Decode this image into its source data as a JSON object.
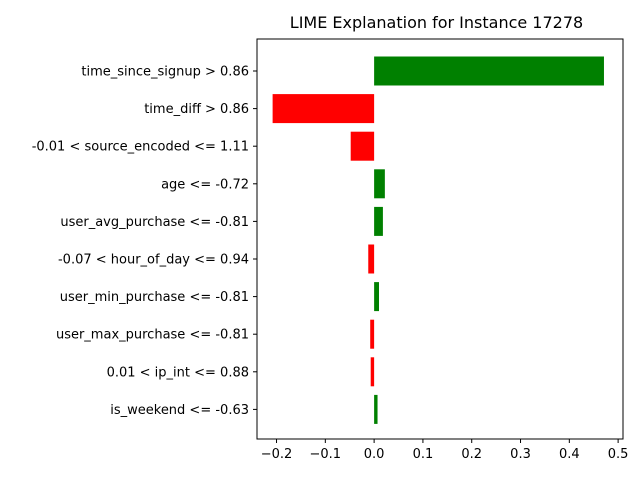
{
  "chart_data": {
    "type": "bar",
    "orientation": "horizontal",
    "title": "LIME Explanation for Instance 17278",
    "xlabel": "",
    "ylabel": "",
    "xlim": [
      -0.24,
      0.51
    ],
    "x_ticks": [
      -0.2,
      -0.1,
      0.0,
      0.1,
      0.2,
      0.3,
      0.4,
      0.5
    ],
    "x_tick_labels": [
      "−0.2",
      "−0.1",
      "0.0",
      "0.1",
      "0.2",
      "0.3",
      "0.4",
      "0.5"
    ],
    "grid": false,
    "legend": "none",
    "positive_color": "#008000",
    "negative_color": "#ff0000",
    "categories": [
      "time_since_signup > 0.86",
      "time_diff > 0.86",
      "-0.01 < source_encoded <= 1.11",
      "age <= -0.72",
      "user_avg_purchase <= -0.81",
      "-0.07 < hour_of_day <= 0.94",
      "user_min_purchase <= -0.81",
      "user_max_purchase <= -0.81",
      "0.01 < ip_int <= 0.88",
      "is_weekend <= -0.63"
    ],
    "values": [
      0.471,
      -0.208,
      -0.048,
      0.022,
      0.018,
      -0.012,
      0.01,
      -0.008,
      -0.007,
      0.007
    ]
  }
}
